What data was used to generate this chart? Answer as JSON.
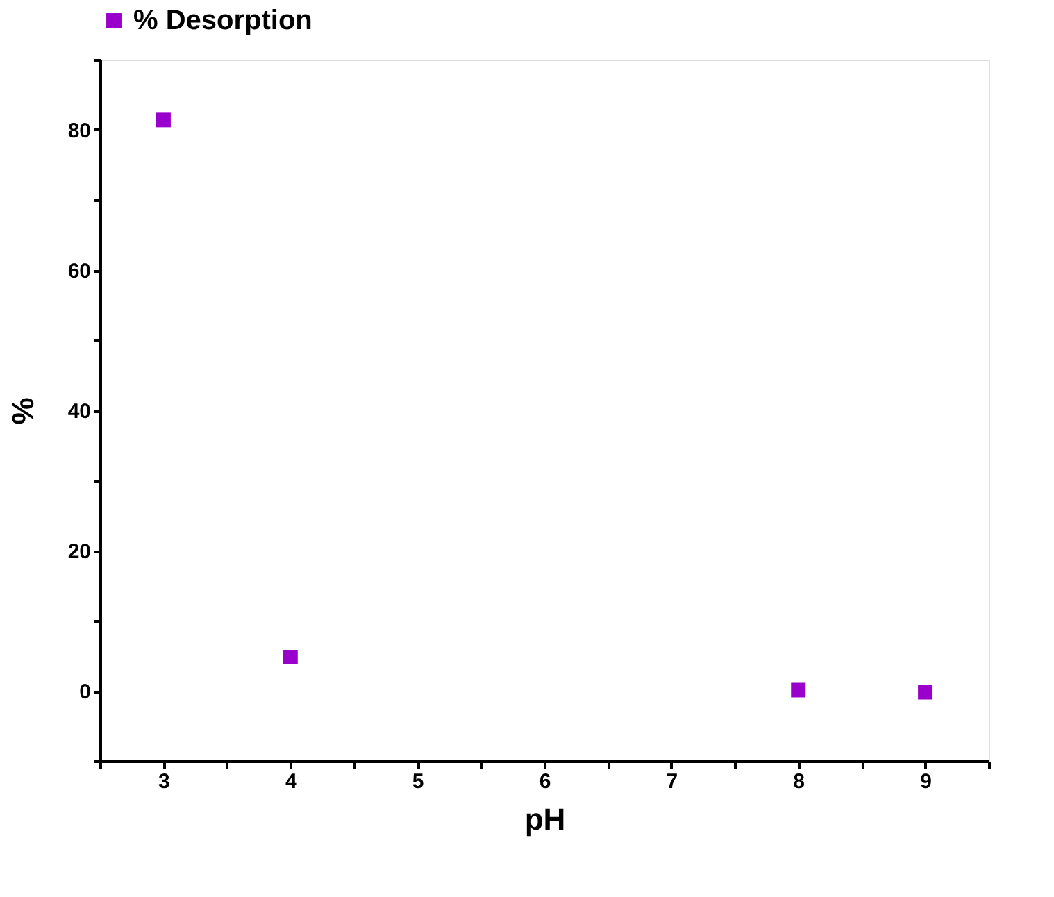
{
  "chart_data": {
    "type": "scatter",
    "xlabel": "pH",
    "ylabel": "%",
    "x": [
      3,
      4,
      8,
      9
    ],
    "series": [
      {
        "name": "% Desorption",
        "color": "#9900cc",
        "values": [
          81.4,
          4.8,
          0.1,
          -0.2
        ]
      }
    ],
    "xlim": [
      2.5,
      9.5
    ],
    "ylim": [
      -10,
      90
    ],
    "xticks": [
      {
        "value": 2.5,
        "label": null
      },
      3,
      {
        "value": 3.5,
        "label": null
      },
      4,
      {
        "value": 4.5,
        "label": null
      },
      5,
      {
        "value": 5.5,
        "label": null
      },
      6,
      {
        "value": 6.5,
        "label": null
      },
      7,
      {
        "value": 7.5,
        "label": null
      },
      8,
      {
        "value": 8.5,
        "label": null
      },
      9,
      {
        "value": 9.5,
        "label": null
      }
    ],
    "yticks": [
      {
        "value": -10,
        "label": null
      },
      0,
      {
        "value": 10,
        "label": null
      },
      20,
      {
        "value": 30,
        "label": null
      },
      40,
      {
        "value": 50,
        "label": null
      },
      60,
      {
        "value": 70,
        "label": null
      },
      80,
      {
        "value": 90,
        "label": null
      }
    ],
    "marker": "square",
    "grid": false,
    "legend": "top"
  }
}
